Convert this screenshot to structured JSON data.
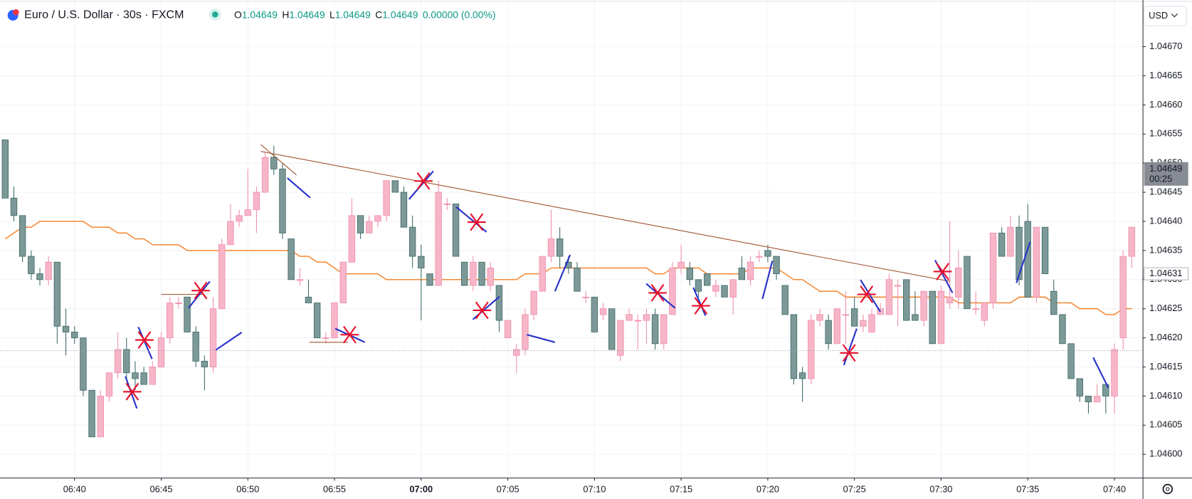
{
  "chart_data": {
    "type": "candlestick",
    "title": "Euro / U.S. Dollar · 30s · FXCM",
    "ohlc": [
      {
        "label": "O",
        "value": 1.04649
      },
      {
        "label": "H",
        "value": 1.04649
      },
      {
        "label": "L",
        "value": 1.04649
      },
      {
        "label": "C",
        "value": 1.04649
      }
    ],
    "change": "0.00000 (0.00%)",
    "currency": "USD",
    "up_color": "#f7b6c8",
    "up_border": "#ef8fac",
    "down_color": "#7d9997",
    "down_border": "#3e6b69",
    "ma_color": "#f57c20",
    "trend_color": "#a0522d",
    "grid": true,
    "open": [
      1.04654,
      1.04644,
      1.04641,
      1.04634,
      1.04631,
      1.0463,
      1.04633,
      1.04622,
      1.04621,
      1.0462,
      1.04611,
      1.04603,
      1.0461,
      1.04614,
      1.04618,
      1.04614,
      1.04614,
      1.04612,
      1.04615,
      1.0462,
      1.04626,
      1.04627,
      1.04621,
      1.04616,
      1.04615,
      1.04625,
      1.04636,
      1.0464,
      1.04641,
      1.04642,
      1.04645,
      1.04651,
      1.04649,
      1.04637,
      1.0463,
      1.04627,
      1.04626,
      1.0462,
      1.0462,
      1.04626,
      1.04633,
      1.04641,
      1.04638,
      1.0464,
      1.04641,
      1.04647,
      1.04645,
      1.04639,
      1.04634,
      1.04631,
      1.04629,
      1.04643,
      1.04643,
      1.04633,
      1.04629,
      1.04633,
      1.04629,
      1.04629,
      1.0462,
      1.04617,
      1.04618,
      1.04624,
      1.04628,
      1.04634,
      1.04637,
      1.04633,
      1.04632,
      1.04627,
      1.04627,
      1.04624,
      1.04625,
      1.04617,
      1.04623,
      1.04623,
      1.04623,
      1.04624,
      1.04619,
      1.04624,
      1.04632,
      1.04632,
      1.0463,
      1.04631,
      1.04628,
      1.04629,
      1.04627,
      1.04632,
      1.0463,
      1.04634,
      1.04635,
      1.04634,
      1.04629,
      1.04624,
      1.04614,
      1.04613,
      1.04623,
      1.04623,
      1.04619,
      1.04624,
      1.04625,
      1.04622,
      1.04621,
      1.04624,
      1.04624,
      1.04629,
      1.0463,
      1.04624,
      1.04623,
      1.04628,
      1.04619,
      1.04626,
      1.04627,
      1.04634,
      1.04625,
      1.04623,
      1.04626,
      1.04638,
      1.04634,
      1.04639,
      1.0464,
      1.04627,
      1.04639,
      1.04628,
      1.04624,
      1.04619,
      1.04613,
      1.0461,
      1.04609,
      1.04612,
      1.0461,
      1.0462,
      1.04634
    ],
    "high": [
      1.04654,
      1.04646,
      1.04641,
      1.04635,
      1.04632,
      1.04634,
      1.04633,
      1.04625,
      1.04622,
      1.0462,
      1.04611,
      1.04611,
      1.04614,
      1.04621,
      1.0462,
      1.04616,
      1.04615,
      1.04616,
      1.04621,
      1.04627,
      1.04627,
      1.04627,
      1.04622,
      1.04617,
      1.04627,
      1.04637,
      1.04643,
      1.04642,
      1.04649,
      1.04646,
      1.04652,
      1.04653,
      1.0465,
      1.04637,
      1.04632,
      1.0463,
      1.04626,
      1.04621,
      1.04626,
      1.04633,
      1.04644,
      1.04641,
      1.04641,
      1.04641,
      1.04647,
      1.04647,
      1.04646,
      1.04641,
      1.04636,
      1.04631,
      1.04647,
      1.04644,
      1.04643,
      1.04633,
      1.04634,
      1.04633,
      1.04633,
      1.04629,
      1.04623,
      1.04619,
      1.04625,
      1.04628,
      1.04634,
      1.04642,
      1.04639,
      1.04634,
      1.04633,
      1.04628,
      1.04627,
      1.04626,
      1.04625,
      1.04623,
      1.04625,
      1.04624,
      1.04625,
      1.04625,
      1.04624,
      1.04633,
      1.04636,
      1.04633,
      1.0463,
      1.04631,
      1.0463,
      1.04629,
      1.0463,
      1.04634,
      1.04634,
      1.04635,
      1.04636,
      1.04634,
      1.04629,
      1.04624,
      1.04615,
      1.04624,
      1.04625,
      1.04624,
      1.04625,
      1.04628,
      1.04627,
      1.04624,
      1.04625,
      1.04626,
      1.04631,
      1.0463,
      1.0463,
      1.04628,
      1.04628,
      1.04628,
      1.04629,
      1.0464,
      1.04635,
      1.04634,
      1.04628,
      1.04626,
      1.04638,
      1.04639,
      1.04641,
      1.04641,
      1.04643,
      1.04639,
      1.04639,
      1.0463,
      1.04624,
      1.04619,
      1.04613,
      1.0461,
      1.04612,
      1.04612,
      1.04619,
      1.04635,
      1.04639
    ],
    "low": [
      1.04644,
      1.0464,
      1.04633,
      1.0463,
      1.04629,
      1.04629,
      1.04619,
      1.04617,
      1.04619,
      1.0461,
      1.04603,
      1.04603,
      1.04609,
      1.04613,
      1.04613,
      1.04611,
      1.04612,
      1.04612,
      1.04615,
      1.04619,
      1.04625,
      1.04621,
      1.04615,
      1.04611,
      1.04614,
      1.04625,
      1.04636,
      1.04639,
      1.04641,
      1.04638,
      1.04645,
      1.04648,
      1.04637,
      1.0463,
      1.04629,
      1.04626,
      1.0462,
      1.04619,
      1.0462,
      1.04626,
      1.04633,
      1.04637,
      1.04638,
      1.04639,
      1.0464,
      1.04645,
      1.04639,
      1.04632,
      1.04623,
      1.04629,
      1.04629,
      1.04642,
      1.04634,
      1.04629,
      1.04628,
      1.04629,
      1.04628,
      1.04621,
      1.0462,
      1.04614,
      1.04617,
      1.04623,
      1.04628,
      1.04633,
      1.04632,
      1.04631,
      1.04628,
      1.04626,
      1.04621,
      1.04623,
      1.04618,
      1.04616,
      1.04623,
      1.04618,
      1.04619,
      1.04618,
      1.04618,
      1.04624,
      1.04631,
      1.04629,
      1.04627,
      1.04629,
      1.04627,
      1.04627,
      1.04624,
      1.0463,
      1.04629,
      1.04633,
      1.04633,
      1.0463,
      1.04624,
      1.04612,
      1.04609,
      1.04612,
      1.04622,
      1.04618,
      1.04619,
      1.04619,
      1.04622,
      1.04621,
      1.04621,
      1.04624,
      1.04624,
      1.04622,
      1.04623,
      1.04623,
      1.04622,
      1.04619,
      1.04619,
      1.04625,
      1.04625,
      1.04625,
      1.04624,
      1.04622,
      1.04625,
      1.04634,
      1.04634,
      1.04629,
      1.04627,
      1.04626,
      1.04631,
      1.04624,
      1.04619,
      1.04613,
      1.04609,
      1.04607,
      1.04609,
      1.04607,
      1.04607,
      1.04618,
      1.04632
    ],
    "close": [
      1.04644,
      1.04641,
      1.04634,
      1.04631,
      1.0463,
      1.04633,
      1.04622,
      1.04621,
      1.0462,
      1.04611,
      1.04603,
      1.0461,
      1.04614,
      1.04618,
      1.04614,
      1.04613,
      1.04612,
      1.04615,
      1.0462,
      1.04626,
      1.04626,
      1.04621,
      1.04616,
      1.04615,
      1.04625,
      1.04636,
      1.0464,
      1.04641,
      1.04642,
      1.04645,
      1.04651,
      1.04649,
      1.04638,
      1.0463,
      1.0463,
      1.04626,
      1.0462,
      1.0462,
      1.04626,
      1.04633,
      1.04641,
      1.04638,
      1.0464,
      1.04641,
      1.04647,
      1.04645,
      1.04639,
      1.04634,
      1.04632,
      1.04629,
      1.04645,
      1.04643,
      1.04634,
      1.04629,
      1.04633,
      1.04629,
      1.04632,
      1.04623,
      1.04623,
      1.04618,
      1.04624,
      1.04628,
      1.04634,
      1.04637,
      1.04634,
      1.04632,
      1.04628,
      1.04627,
      1.04621,
      1.04625,
      1.04618,
      1.04623,
      1.04624,
      1.04623,
      1.04624,
      1.04619,
      1.04624,
      1.04632,
      1.04633,
      1.0463,
      1.04628,
      1.04629,
      1.04629,
      1.04627,
      1.0463,
      1.0463,
      1.04633,
      1.04634,
      1.04634,
      1.04631,
      1.04624,
      1.04613,
      1.04613,
      1.04623,
      1.04624,
      1.04619,
      1.04625,
      1.04624,
      1.04622,
      1.04623,
      1.04624,
      1.04625,
      1.0463,
      1.04629,
      1.04623,
      1.04623,
      1.04628,
      1.04619,
      1.04628,
      1.04627,
      1.04632,
      1.04625,
      1.04625,
      1.04626,
      1.04638,
      1.04634,
      1.04639,
      1.0463,
      1.04627,
      1.04639,
      1.04631,
      1.04624,
      1.04619,
      1.04613,
      1.0461,
      1.04609,
      1.0461,
      1.0461,
      1.04618,
      1.04634,
      1.04639
    ],
    "ma": [
      1.04637,
      1.04638,
      1.04639,
      1.04639,
      1.0464,
      1.0464,
      1.0464,
      1.0464,
      1.0464,
      1.0464,
      1.04639,
      1.04639,
      1.04639,
      1.04638,
      1.04638,
      1.04637,
      1.04637,
      1.04636,
      1.04636,
      1.04636,
      1.04636,
      1.04635,
      1.04635,
      1.04635,
      1.04635,
      1.04635,
      1.04635,
      1.04635,
      1.04635,
      1.04635,
      1.04635,
      1.04635,
      1.04635,
      1.04635,
      1.04634,
      1.04634,
      1.04633,
      1.04633,
      1.04632,
      1.04631,
      1.04631,
      1.04631,
      1.04631,
      1.04631,
      1.0463,
      1.0463,
      1.0463,
      1.0463,
      1.0463,
      1.0463,
      1.0463,
      1.0463,
      1.0463,
      1.0463,
      1.0463,
      1.0463,
      1.0463,
      1.0463,
      1.0463,
      1.0463,
      1.04631,
      1.04631,
      1.04631,
      1.04632,
      1.04632,
      1.04632,
      1.04632,
      1.04632,
      1.04632,
      1.04632,
      1.04632,
      1.04632,
      1.04632,
      1.04632,
      1.04632,
      1.04631,
      1.04631,
      1.04632,
      1.04632,
      1.04632,
      1.04632,
      1.04631,
      1.04631,
      1.04631,
      1.04631,
      1.04631,
      1.04632,
      1.04632,
      1.04632,
      1.04632,
      1.04631,
      1.0463,
      1.0463,
      1.04629,
      1.04628,
      1.04628,
      1.04628,
      1.04627,
      1.04627,
      1.04627,
      1.04627,
      1.04627,
      1.04627,
      1.04627,
      1.04627,
      1.04627,
      1.04627,
      1.04627,
      1.04627,
      1.04627,
      1.04626,
      1.04626,
      1.04626,
      1.04626,
      1.04626,
      1.04626,
      1.04626,
      1.04627,
      1.04627,
      1.04627,
      1.04627,
      1.04626,
      1.04626,
      1.04626,
      1.04625,
      1.04625,
      1.04625,
      1.04624,
      1.04624,
      1.04625,
      1.04625
    ],
    "last_price": 1.04649,
    "countdown": "00:25",
    "ma_price": 1.04631,
    "ylim": [
      1.04596,
      1.04678
    ],
    "yticks": [
      {
        "value": 1.046,
        "label": "1.04600"
      },
      {
        "value": 1.04605,
        "label": "1.04605"
      },
      {
        "value": 1.0461,
        "label": "1.04610"
      },
      {
        "value": 1.04615,
        "label": "1.04615"
      },
      {
        "value": 1.0462,
        "label": "1.04620"
      },
      {
        "value": 1.04625,
        "label": "1.04625"
      },
      {
        "value": 1.0463,
        "label": "1.04630"
      },
      {
        "value": 1.04635,
        "label": "1.04635"
      },
      {
        "value": 1.0464,
        "label": "1.04640"
      },
      {
        "value": 1.04645,
        "label": "1.04645"
      },
      {
        "value": 1.0465,
        "label": "1.04650"
      },
      {
        "value": 1.04655,
        "label": "1.04655"
      },
      {
        "value": 1.0466,
        "label": "1.04660"
      },
      {
        "value": 1.04665,
        "label": "1.04665"
      },
      {
        "value": 1.0467,
        "label": "1.04670"
      }
    ],
    "xlim": [
      -0.6,
      131.25
    ],
    "xticks": [
      {
        "value": 8,
        "label": "06:40"
      },
      {
        "value": 18,
        "label": "06:45"
      },
      {
        "value": 28,
        "label": "06:50"
      },
      {
        "value": 38,
        "label": "06:55"
      },
      {
        "value": 48,
        "label": "07:00"
      },
      {
        "value": 58,
        "label": "07:05"
      },
      {
        "value": 68,
        "label": "07:10"
      },
      {
        "value": 78,
        "label": "07:15"
      },
      {
        "value": 88,
        "label": "07:20"
      },
      {
        "value": 98,
        "label": "07:25"
      },
      {
        "value": 108,
        "label": "07:30"
      },
      {
        "value": 118,
        "label": "07:35"
      },
      {
        "value": 128,
        "label": "07:40"
      }
    ]
  }
}
